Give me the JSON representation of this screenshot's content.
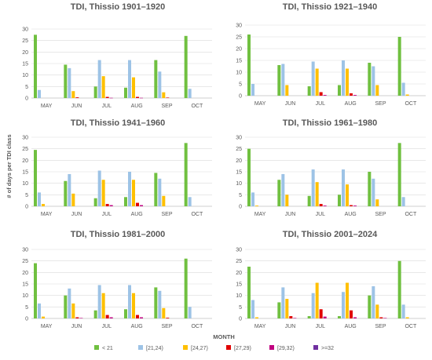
{
  "ylabel": "# of days per TDI class",
  "xlabel": "MONTH",
  "legend": [
    {
      "name": "< 21",
      "color": "#70c040"
    },
    {
      "name": "[21,24)",
      "color": "#9dc3e6"
    },
    {
      "name": "[24,27)",
      "color": "#ffc000"
    },
    {
      "name": "[27,29)",
      "color": "#e00000"
    },
    {
      "name": "[29,32)",
      "color": "#c00080"
    },
    {
      "name": ">=32",
      "color": "#7030a0"
    }
  ],
  "chart_data": [
    {
      "type": "bar",
      "title": "TDI, Thissio 1901–1920",
      "categories": [
        "MAY",
        "JUN",
        "JUL",
        "AUG",
        "SEP",
        "OCT"
      ],
      "yticks": [
        "0",
        "5",
        "10",
        "15",
        "20",
        "25",
        "30"
      ],
      "ylim": [
        0,
        30
      ],
      "series": [
        {
          "name": "< 21",
          "values": [
            27.5,
            14.5,
            5,
            4.5,
            16.5,
            27
          ]
        },
        {
          "name": "[21,24)",
          "values": [
            3.5,
            13,
            16.5,
            16.5,
            11.5,
            4
          ]
        },
        {
          "name": "[24,27)",
          "values": [
            0,
            3,
            9.5,
            9,
            2.5,
            0
          ]
        },
        {
          "name": "[27,29)",
          "values": [
            0,
            0.3,
            0.5,
            0.5,
            0.2,
            0
          ]
        },
        {
          "name": "[29,32)",
          "values": [
            0,
            0,
            0.1,
            0.1,
            0,
            0
          ]
        },
        {
          "name": ">=32",
          "values": [
            0,
            0,
            0,
            0,
            0,
            0
          ]
        }
      ]
    },
    {
      "type": "bar",
      "title": "TDI, Thissio 1921–1940",
      "categories": [
        "MAY",
        "JUN",
        "JUL",
        "AUG",
        "SEP",
        "OCT"
      ],
      "yticks": [
        "0",
        "5",
        "10",
        "15",
        "20",
        "25",
        "30"
      ],
      "ylim": [
        0,
        30
      ],
      "series": [
        {
          "name": "< 21",
          "values": [
            26,
            13,
            4,
            4.5,
            14,
            25
          ]
        },
        {
          "name": "[21,24)",
          "values": [
            5,
            13.5,
            14.5,
            15,
            12.5,
            5.5
          ]
        },
        {
          "name": "[24,27)",
          "values": [
            0,
            4.5,
            11.5,
            11.5,
            4.5,
            0.5
          ]
        },
        {
          "name": "[27,29)",
          "values": [
            0,
            0,
            1.5,
            1,
            0,
            0
          ]
        },
        {
          "name": "[29,32)",
          "values": [
            0,
            0,
            0.3,
            0.3,
            0,
            0
          ]
        },
        {
          "name": ">=32",
          "values": [
            0,
            0,
            0,
            0,
            0,
            0
          ]
        }
      ]
    },
    {
      "type": "bar",
      "title": "TDI, Thissio 1941–1960",
      "categories": [
        "MAY",
        "JUN",
        "JUL",
        "AUG",
        "SEP",
        "OCT"
      ],
      "yticks": [
        "0",
        "5",
        "10",
        "15",
        "20",
        "25",
        "30"
      ],
      "ylim": [
        0,
        30
      ],
      "series": [
        {
          "name": "< 21",
          "values": [
            24.5,
            11,
            3.5,
            4,
            14.5,
            27.5
          ]
        },
        {
          "name": "[21,24)",
          "values": [
            6,
            14,
            15.5,
            15,
            12,
            4
          ]
        },
        {
          "name": "[24,27)",
          "values": [
            1,
            5.5,
            11.5,
            11.5,
            4.5,
            0
          ]
        },
        {
          "name": "[27,29)",
          "values": [
            0,
            0,
            1,
            1.5,
            0,
            0
          ]
        },
        {
          "name": "[29,32)",
          "values": [
            0,
            0,
            0.5,
            0.5,
            0,
            0
          ]
        },
        {
          "name": ">=32",
          "values": [
            0,
            0,
            0,
            0,
            0,
            0
          ]
        }
      ]
    },
    {
      "type": "bar",
      "title": "TDI, Thissio 1961–1980",
      "categories": [
        "MAY",
        "JUN",
        "JUL",
        "AUG",
        "SEP",
        "OCT"
      ],
      "yticks": [
        "0",
        "5",
        "10",
        "15",
        "20",
        "25",
        "30"
      ],
      "ylim": [
        0,
        30
      ],
      "series": [
        {
          "name": "< 21",
          "values": [
            25,
            11.5,
            4.5,
            5,
            15,
            27.5
          ]
        },
        {
          "name": "[21,24)",
          "values": [
            6,
            14,
            16,
            16,
            12,
            4
          ]
        },
        {
          "name": "[24,27)",
          "values": [
            0.3,
            5,
            10.5,
            9.5,
            3,
            0
          ]
        },
        {
          "name": "[27,29)",
          "values": [
            0,
            0,
            1,
            0.5,
            0,
            0
          ]
        },
        {
          "name": "[29,32)",
          "values": [
            0,
            0,
            0.3,
            0.3,
            0,
            0
          ]
        },
        {
          "name": ">=32",
          "values": [
            0,
            0,
            0,
            0,
            0,
            0
          ]
        }
      ]
    },
    {
      "type": "bar",
      "title": "TDI, Thissio 1981–2000",
      "categories": [
        "MAY",
        "JUN",
        "JUL",
        "AUG",
        "SEP",
        "OCT"
      ],
      "yticks": [
        "0",
        "5",
        "10",
        "15",
        "20",
        "25",
        "30"
      ],
      "ylim": [
        0,
        30
      ],
      "series": [
        {
          "name": "< 21",
          "values": [
            24,
            10,
            3.5,
            4,
            13.5,
            26
          ]
        },
        {
          "name": "[21,24)",
          "values": [
            6.5,
            13,
            14.5,
            14.5,
            12,
            5
          ]
        },
        {
          "name": "[24,27)",
          "values": [
            0.8,
            6.5,
            11,
            11,
            4.5,
            0
          ]
        },
        {
          "name": "[27,29)",
          "values": [
            0,
            0.5,
            1.5,
            1.5,
            0.3,
            0
          ]
        },
        {
          "name": "[29,32)",
          "values": [
            0,
            0.2,
            0.5,
            0.5,
            0,
            0
          ]
        },
        {
          "name": ">=32",
          "values": [
            0,
            0,
            0,
            0,
            0,
            0
          ]
        }
      ]
    },
    {
      "type": "bar",
      "title": "TDI, Thissio 2001–2024",
      "categories": [
        "MAY",
        "JUN",
        "JUL",
        "AUG",
        "SEP",
        "OCT"
      ],
      "yticks": [
        "0",
        "5",
        "10",
        "15",
        "20",
        "25",
        "30"
      ],
      "ylim": [
        0,
        30
      ],
      "series": [
        {
          "name": "< 21",
          "values": [
            22.5,
            7,
            1,
            1,
            10,
            25
          ]
        },
        {
          "name": "[21,24)",
          "values": [
            8,
            13.5,
            11,
            11.5,
            14,
            6
          ]
        },
        {
          "name": "[24,27)",
          "values": [
            0.5,
            8.5,
            15.5,
            15.5,
            6,
            0.5
          ]
        },
        {
          "name": "[27,29)",
          "values": [
            0,
            1,
            4,
            3.5,
            0.5,
            0
          ]
        },
        {
          "name": "[29,32)",
          "values": [
            0,
            0.2,
            0.8,
            0.5,
            0.2,
            0
          ]
        },
        {
          "name": ">=32",
          "values": [
            0,
            0,
            0,
            0,
            0,
            0
          ]
        }
      ]
    }
  ]
}
